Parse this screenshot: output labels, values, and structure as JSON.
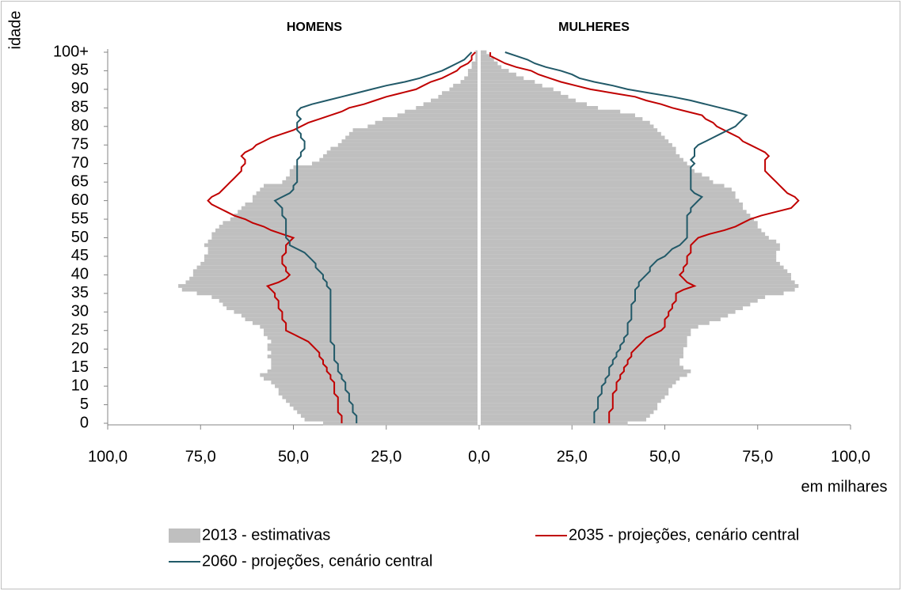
{
  "chart_data": {
    "type": "pyramid",
    "y_label": "idade",
    "x_label": "em milhares",
    "side_labels": [
      "HOMENS",
      "MULHERES"
    ],
    "categories": [
      "0",
      null,
      null,
      null,
      null,
      "5",
      null,
      null,
      null,
      null,
      "10",
      null,
      null,
      null,
      null,
      "15",
      null,
      null,
      null,
      null,
      "20",
      null,
      null,
      null,
      null,
      "25",
      null,
      null,
      null,
      null,
      "30",
      null,
      null,
      null,
      null,
      "35",
      null,
      null,
      null,
      null,
      "40",
      null,
      null,
      null,
      null,
      "45",
      null,
      null,
      null,
      null,
      "50",
      null,
      null,
      null,
      null,
      "55",
      null,
      null,
      null,
      null,
      "60",
      null,
      null,
      null,
      null,
      "65",
      null,
      null,
      null,
      null,
      "70",
      null,
      null,
      null,
      null,
      "75",
      null,
      null,
      null,
      null,
      "80",
      null,
      null,
      null,
      null,
      "85",
      null,
      null,
      null,
      null,
      "90",
      null,
      null,
      null,
      null,
      "95",
      null,
      null,
      null,
      null,
      "100+"
    ],
    "xlim": [
      -100,
      100
    ],
    "xticks": [
      {
        "value": -100,
        "label": "100,0"
      },
      {
        "value": -75,
        "label": "75,0"
      },
      {
        "value": -50,
        "label": "50,0"
      },
      {
        "value": -25,
        "label": "25,0"
      },
      {
        "value": 0,
        "label": "0,0"
      },
      {
        "value": 25,
        "label": "25,0"
      },
      {
        "value": 50,
        "label": "50,0"
      },
      {
        "value": 75,
        "label": "75,0"
      },
      {
        "value": 100,
        "label": "100,0"
      }
    ],
    "series": [
      {
        "name": "2013 - estimativas",
        "kind": "bar",
        "color": "#bfbfbf",
        "homens": [
          42,
          47,
          48,
          49,
          50,
          51,
          52,
          53,
          54,
          54,
          55,
          56,
          58,
          59,
          57,
          56,
          56,
          56,
          57,
          56,
          57,
          57,
          56,
          57,
          58,
          58,
          59,
          61,
          63,
          64,
          66,
          68,
          69,
          70,
          72,
          76,
          80,
          81,
          79,
          78,
          77,
          77,
          76,
          75,
          74,
          74,
          73,
          73,
          74,
          73,
          72,
          72,
          71,
          70,
          69,
          67,
          66,
          65,
          64,
          63,
          61,
          61,
          60,
          59,
          58,
          53,
          52,
          51,
          51,
          50,
          45,
          43,
          42,
          41,
          40,
          38,
          37,
          36,
          35,
          34,
          30,
          28,
          26,
          22,
          20,
          17,
          15,
          13,
          11,
          10,
          8,
          7,
          5,
          4,
          3,
          3,
          2,
          2,
          1,
          1,
          1
        ],
        "mulheres": [
          40,
          45,
          46,
          47,
          48,
          48,
          49,
          50,
          51,
          51,
          52,
          53,
          54,
          56,
          57,
          55,
          54,
          54,
          55,
          55,
          55,
          56,
          56,
          56,
          57,
          57,
          59,
          62,
          65,
          67,
          69,
          71,
          73,
          75,
          77,
          82,
          85,
          86,
          85,
          84,
          84,
          83,
          82,
          81,
          80,
          80,
          80,
          81,
          81,
          80,
          78,
          77,
          76,
          75,
          75,
          74,
          73,
          72,
          71,
          71,
          70,
          69,
          69,
          68,
          66,
          63,
          62,
          60,
          58,
          57,
          56,
          55,
          54,
          53,
          53,
          52,
          51,
          50,
          49,
          48,
          47,
          46,
          44,
          42,
          38,
          32,
          29,
          26,
          24,
          22,
          20,
          17,
          15,
          12,
          10,
          8,
          6,
          5,
          4,
          3,
          2
        ]
      },
      {
        "name": "2035 - projeções, cenário central",
        "kind": "line",
        "color": "#c00000",
        "homens": [
          37,
          37,
          37,
          38,
          38,
          38,
          38,
          38,
          39,
          39,
          39,
          39,
          40,
          40,
          41,
          41,
          42,
          42,
          43,
          43,
          44,
          45,
          46,
          48,
          50,
          52,
          52,
          52,
          53,
          53,
          53,
          54,
          54,
          54,
          55,
          55,
          56,
          57,
          54,
          52,
          51,
          52,
          52,
          53,
          53,
          53,
          52,
          52,
          52,
          51,
          50,
          53,
          56,
          58,
          61,
          63,
          66,
          68,
          70,
          72,
          73,
          72,
          70,
          69,
          68,
          67,
          66,
          65,
          64,
          64,
          63,
          63,
          64,
          63,
          61,
          60,
          58,
          56,
          53,
          50,
          48,
          46,
          43,
          40,
          37,
          35,
          31,
          28,
          25,
          21,
          17,
          15,
          13,
          10,
          8,
          6,
          5,
          3,
          2,
          2,
          1
        ],
        "mulheres": [
          35,
          35,
          35,
          35,
          36,
          36,
          36,
          36,
          36,
          37,
          37,
          37,
          38,
          38,
          39,
          39,
          40,
          40,
          41,
          41,
          42,
          43,
          44,
          45,
          47,
          49,
          50,
          50,
          50,
          51,
          51,
          52,
          52,
          53,
          53,
          53,
          55,
          58,
          56,
          55,
          54,
          55,
          55,
          56,
          56,
          56,
          57,
          57,
          57,
          58,
          59,
          62,
          66,
          69,
          71,
          73,
          76,
          80,
          84,
          85,
          86,
          85,
          83,
          82,
          81,
          80,
          79,
          78,
          77,
          77,
          77,
          77,
          78,
          77,
          75,
          73,
          71,
          70,
          68,
          66,
          64,
          63,
          61,
          60,
          56,
          52,
          49,
          45,
          42,
          36,
          30,
          26,
          22,
          19,
          16,
          14,
          10,
          7,
          5,
          3,
          3
        ]
      },
      {
        "name": "2060 - projeções, cenário central",
        "kind": "line",
        "color": "#215968",
        "homens": [
          33,
          33,
          33,
          34,
          34,
          34,
          35,
          35,
          35,
          36,
          36,
          36,
          37,
          37,
          38,
          38,
          38,
          39,
          39,
          39,
          39,
          39,
          40,
          40,
          40,
          40,
          40,
          40,
          40,
          40,
          40,
          40,
          40,
          40,
          40,
          40,
          40,
          41,
          41,
          42,
          42,
          43,
          44,
          44,
          45,
          46,
          47,
          49,
          51,
          51,
          52,
          52,
          52,
          52,
          52,
          52,
          53,
          53,
          53,
          54,
          55,
          53,
          51,
          50,
          50,
          49,
          49,
          49,
          49,
          49,
          49,
          49,
          48,
          48,
          47,
          47,
          47,
          48,
          48,
          49,
          49,
          49,
          48,
          49,
          49,
          48,
          45,
          41,
          37,
          33,
          29,
          25,
          20,
          16,
          13,
          10,
          8,
          6,
          4,
          3,
          2
        ],
        "mulheres": [
          31,
          31,
          31,
          31,
          32,
          32,
          32,
          32,
          33,
          33,
          33,
          34,
          34,
          35,
          35,
          35,
          36,
          36,
          37,
          37,
          38,
          38,
          39,
          39,
          40,
          40,
          40,
          40,
          41,
          41,
          41,
          41,
          41,
          42,
          42,
          42,
          42,
          43,
          43,
          44,
          45,
          46,
          46,
          47,
          48,
          50,
          51,
          52,
          54,
          55,
          56,
          56,
          56,
          56,
          56,
          56,
          56,
          57,
          57,
          58,
          59,
          60,
          58,
          57,
          57,
          57,
          57,
          57,
          57,
          57,
          58,
          57,
          58,
          58,
          58,
          59,
          61,
          63,
          65,
          67,
          69,
          70,
          71,
          72,
          69,
          65,
          61,
          57,
          52,
          46,
          40,
          36,
          31,
          27,
          25,
          22,
          18,
          15,
          13,
          10,
          7
        ]
      }
    ]
  }
}
